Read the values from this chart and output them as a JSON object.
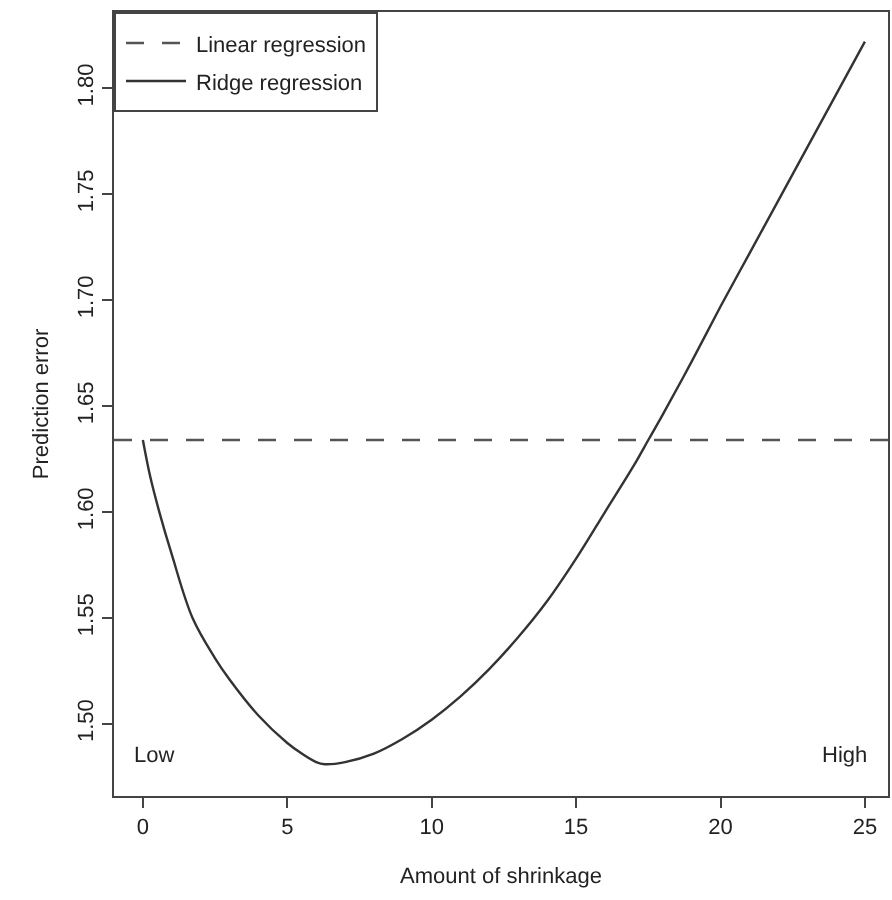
{
  "chart_data": {
    "type": "line",
    "xlabel": "Amount of shrinkage",
    "ylabel": "Prediction error",
    "xlim": [
      -1,
      25.8
    ],
    "ylim": [
      1.466,
      1.836
    ],
    "xticks": [
      0,
      5,
      10,
      15,
      20,
      25
    ],
    "yticks": [
      {
        "value": 1.5,
        "label": "1.50"
      },
      1.55,
      {
        "value": 1.6,
        "label": "1.60"
      },
      1.65,
      {
        "value": 1.7,
        "label": "1.70"
      },
      1.75,
      {
        "value": 1.8,
        "label": "1.80"
      }
    ],
    "legend": "top left",
    "marker": "none",
    "annotations": [
      "Low",
      "High"
    ],
    "series": [
      {
        "name": "Linear regression",
        "color": "#555555",
        "line_style": "dashed",
        "x": [
          -1,
          25.8
        ],
        "values": [
          1.634,
          1.634
        ]
      },
      {
        "name": "Ridge regression",
        "color": "#333333",
        "line_style": "solid",
        "x": [
          0,
          0.25,
          0.57,
          1,
          1.72,
          2.5,
          3,
          4,
          5,
          5.5,
          6,
          6.3,
          7,
          8,
          9,
          10,
          11,
          12,
          13,
          14,
          15,
          16,
          17,
          17.5,
          18,
          19,
          20,
          21,
          22,
          23,
          24,
          25
        ],
        "values": [
          1.634,
          1.617,
          1.6,
          1.58,
          1.55,
          1.531,
          1.521,
          1.504,
          1.491,
          1.486,
          1.482,
          1.481,
          1.482,
          1.486,
          1.493,
          1.502,
          1.513,
          1.526,
          1.541,
          1.558,
          1.578,
          1.6,
          1.622,
          1.634,
          1.646,
          1.671,
          1.697,
          1.722,
          1.747,
          1.772,
          1.797,
          1.822
        ]
      }
    ]
  }
}
